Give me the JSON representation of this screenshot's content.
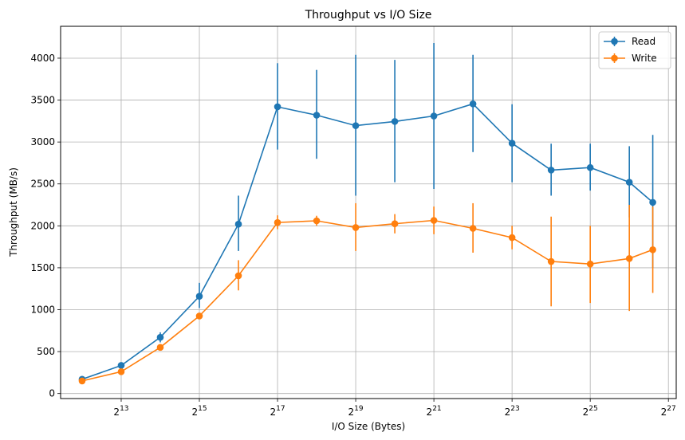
{
  "chart_data": {
    "type": "line",
    "title": "Throughput vs I/O Size",
    "xlabel": "I/O Size (Bytes)",
    "ylabel": "Throughput (MB/s)",
    "xscale": "log2",
    "x_exponents": [
      12,
      13,
      14,
      15,
      16,
      17,
      18,
      19,
      20,
      21,
      22,
      23,
      24,
      25,
      26,
      26.6
    ],
    "xlim_exponent": [
      11.45,
      27.2
    ],
    "ylim": [
      -60,
      4380
    ],
    "x_tick_exponents": [
      13,
      15,
      17,
      19,
      21,
      23,
      25,
      27
    ],
    "x_tick_base": "2",
    "y_ticks": [
      0,
      500,
      1000,
      1500,
      2000,
      2500,
      3000,
      3500,
      4000
    ],
    "grid": true,
    "legend_position": "top-right",
    "series": [
      {
        "name": "Read",
        "color": "#1f77b4",
        "values": [
          170,
          335,
          670,
          1160,
          2020,
          3420,
          3320,
          3195,
          3245,
          3310,
          3455,
          2985,
          2665,
          2695,
          2520,
          2280
        ],
        "err_low": [
          150,
          305,
          610,
          1020,
          1700,
          2910,
          2800,
          2360,
          2520,
          2440,
          2880,
          2520,
          2360,
          2420,
          2100,
          1500
        ],
        "err_high": [
          190,
          365,
          730,
          1320,
          2360,
          3940,
          3860,
          4040,
          3980,
          4180,
          4040,
          3450,
          2980,
          2980,
          2950,
          3085
        ]
      },
      {
        "name": "Write",
        "color": "#ff7f0e",
        "values": [
          150,
          260,
          550,
          925,
          1405,
          2040,
          2060,
          1980,
          2025,
          2065,
          1970,
          1860,
          1575,
          1545,
          1610,
          1715
        ],
        "err_low": [
          140,
          240,
          520,
          895,
          1230,
          1960,
          2000,
          1700,
          1910,
          1900,
          1680,
          1720,
          1040,
          1080,
          985,
          1200
        ],
        "err_high": [
          160,
          280,
          580,
          955,
          1590,
          2125,
          2120,
          2270,
          2140,
          2230,
          2270,
          2000,
          2110,
          2000,
          2250,
          2230
        ]
      }
    ]
  }
}
